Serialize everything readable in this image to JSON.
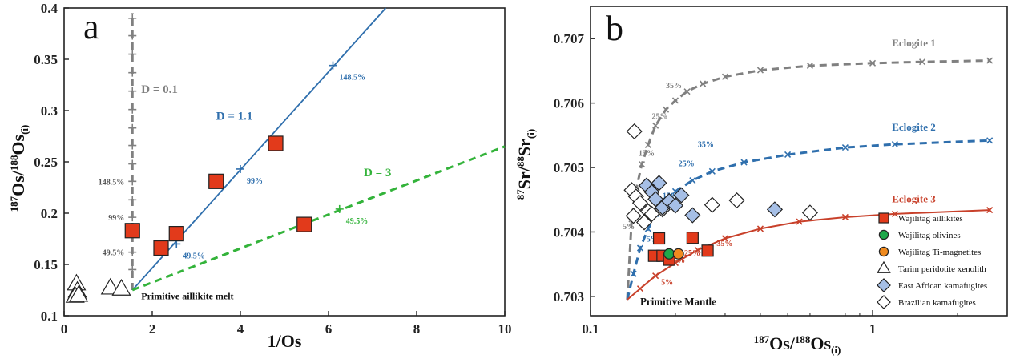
{
  "chart_data": [
    {
      "panel": "a",
      "type": "scatter",
      "xlabel": "1/Os",
      "ylabel": "187Os/188Os(i)",
      "xlim": [
        0,
        10
      ],
      "ylim": [
        0.1,
        0.4
      ],
      "xticks": [
        "0",
        "2",
        "4",
        "6",
        "8",
        "10"
      ],
      "yticks": [
        "0.1",
        "0.15",
        "0.2",
        "0.25",
        "0.3",
        "0.35",
        "0.4"
      ],
      "mixing_lines": [
        {
          "name": "D = 0.1",
          "color": "#808080",
          "style": "dashed",
          "points": [
            [
              1.55,
              0.125
            ],
            [
              1.55,
              0.395
            ]
          ],
          "ticks_y": [
            0.145,
            0.162,
            0.18,
            0.196,
            0.213,
            0.231,
            0.248,
            0.266,
            0.283,
            0.301,
            0.319,
            0.337,
            0.355,
            0.373,
            0.39
          ],
          "labels": [
            {
              "text": "49.5%",
              "x": 1.55,
              "y": 0.162
            },
            {
              "text": "99%",
              "x": 1.55,
              "y": 0.196
            },
            {
              "text": "148.5%",
              "x": 1.55,
              "y": 0.231
            }
          ]
        },
        {
          "name": "D = 1.1",
          "color": "#2f6fad",
          "style": "solid",
          "points": [
            [
              1.55,
              0.125
            ],
            [
              7.3,
              0.4
            ]
          ],
          "ticks": [
            [
              2.55,
              0.17
            ],
            [
              4.0,
              0.243
            ],
            [
              6.1,
              0.344
            ]
          ],
          "labels": [
            {
              "text": "49.5%",
              "x": 2.55,
              "y": 0.17
            },
            {
              "text": "99%",
              "x": 4.0,
              "y": 0.243
            },
            {
              "text": "148.5%",
              "x": 6.1,
              "y": 0.344
            }
          ]
        },
        {
          "name": "D = 3",
          "color": "#33b33a",
          "style": "dashed",
          "points": [
            [
              1.55,
              0.125
            ],
            [
              10,
              0.265
            ]
          ],
          "ticks": [
            [
              6.25,
              0.204
            ]
          ],
          "labels": [
            {
              "text": "49.5%",
              "x": 6.25,
              "y": 0.204
            }
          ]
        }
      ],
      "series": [
        {
          "name": "Wajilitag aillikites",
          "marker": "square",
          "color": "#e23a1b",
          "points": [
            [
              1.55,
              0.183
            ],
            [
              2.2,
              0.166
            ],
            [
              2.55,
              0.18
            ],
            [
              3.45,
              0.231
            ],
            [
              4.8,
              0.268
            ],
            [
              5.45,
              0.189
            ]
          ]
        },
        {
          "name": "Tarim peridotite xenolith",
          "marker": "triangle",
          "color": "#ffffff",
          "points": [
            [
              0.28,
              0.131
            ],
            [
              0.3,
              0.124
            ],
            [
              0.25,
              0.119
            ],
            [
              0.33,
              0.12
            ],
            [
              1.05,
              0.127
            ],
            [
              1.3,
              0.126
            ]
          ]
        }
      ],
      "annotations": [
        {
          "text": "D = 0.1",
          "x": 1.75,
          "y": 0.317
        },
        {
          "text": "D = 1.1",
          "x": 3.45,
          "y": 0.291
        },
        {
          "text": "D = 3",
          "x": 6.8,
          "y": 0.236
        },
        {
          "text": "Primitive aillikite melt",
          "x": 1.75,
          "y": 0.116
        }
      ]
    },
    {
      "panel": "b",
      "type": "line",
      "xscale": "log",
      "xlabel": "187Os/188Os(i)",
      "ylabel": "87Sr/88Sr(i)",
      "xlim": [
        0.1,
        3
      ],
      "ylim": [
        0.7027,
        0.7075
      ],
      "xticks": [
        "0.1",
        "1"
      ],
      "yticks": [
        "0.703",
        "0.704",
        "0.705",
        "0.706",
        "0.707"
      ],
      "mixing_curves": [
        {
          "name": "Eclogite 1",
          "color": "#808080",
          "style": "dashed",
          "points": [
            [
              0.135,
              0.70295
            ],
            [
              0.14,
              0.7042
            ],
            [
              0.145,
              0.70465
            ],
            [
              0.152,
              0.70505
            ],
            [
              0.16,
              0.70535
            ],
            [
              0.17,
              0.70565
            ],
            [
              0.185,
              0.7059
            ],
            [
              0.2,
              0.70604
            ],
            [
              0.22,
              0.70618
            ],
            [
              0.25,
              0.7063
            ],
            [
              0.3,
              0.70641
            ],
            [
              0.4,
              0.70651
            ],
            [
              0.6,
              0.70658
            ],
            [
              1.0,
              0.70662
            ],
            [
              1.5,
              0.70664
            ],
            [
              2.6,
              0.70666
            ]
          ],
          "labels": [
            {
              "text": "5%",
              "x": 0.13,
              "y": 0.70404
            },
            {
              "text": "15%",
              "x": 0.148,
              "y": 0.70518
            },
            {
              "text": "25%",
              "x": 0.165,
              "y": 0.70575
            },
            {
              "text": "35%",
              "x": 0.185,
              "y": 0.70623
            }
          ]
        },
        {
          "name": "Eclogite 2",
          "color": "#2f6fad",
          "style": "dashed",
          "points": [
            [
              0.135,
              0.70295
            ],
            [
              0.142,
              0.70335
            ],
            [
              0.15,
              0.70375
            ],
            [
              0.16,
              0.70405
            ],
            [
              0.17,
              0.70428
            ],
            [
              0.185,
              0.70448
            ],
            [
              0.2,
              0.70463
            ],
            [
              0.23,
              0.7048
            ],
            [
              0.27,
              0.70494
            ],
            [
              0.35,
              0.70508
            ],
            [
              0.5,
              0.7052
            ],
            [
              0.8,
              0.70531
            ],
            [
              1.2,
              0.70536
            ],
            [
              2.6,
              0.70542
            ]
          ],
          "labels": [
            {
              "text": "5%",
              "x": 0.158,
              "y": 0.70385
            },
            {
              "text": "15%",
              "x": 0.18,
              "y": 0.70452
            },
            {
              "text": "25%",
              "x": 0.205,
              "y": 0.70502
            },
            {
              "text": "35%",
              "x": 0.24,
              "y": 0.70532
            }
          ]
        },
        {
          "name": "Eclogite 3",
          "color": "#c8402a",
          "style": "solid",
          "points": [
            [
              0.135,
              0.70295
            ],
            [
              0.15,
              0.70312
            ],
            [
              0.17,
              0.70332
            ],
            [
              0.2,
              0.70352
            ],
            [
              0.24,
              0.70372
            ],
            [
              0.3,
              0.7039
            ],
            [
              0.4,
              0.70405
            ],
            [
              0.55,
              0.70416
            ],
            [
              0.8,
              0.70423
            ],
            [
              1.2,
              0.70428
            ],
            [
              2.6,
              0.70434
            ]
          ],
          "labels": [
            {
              "text": "5%",
              "x": 0.178,
              "y": 0.70318
            },
            {
              "text": "15%",
              "x": 0.19,
              "y": 0.70352
            },
            {
              "text": "25%",
              "x": 0.215,
              "y": 0.70363
            },
            {
              "text": "35%",
              "x": 0.28,
              "y": 0.70378
            }
          ]
        }
      ],
      "curve_labels": [
        {
          "text": "Eclogite 1",
          "x": 1.4,
          "y": 0.70688,
          "color": "#808080"
        },
        {
          "text": "Eclogite 2",
          "x": 1.4,
          "y": 0.70557,
          "color": "#2f6fad"
        },
        {
          "text": "Eclogite 3",
          "x": 1.4,
          "y": 0.70446,
          "color": "#c8402a"
        }
      ],
      "series": [
        {
          "name": "Wajilitag aillikites",
          "marker": "square",
          "color": "#e23a1b",
          "points": [
            [
              0.175,
              0.7039
            ],
            [
              0.168,
              0.70363
            ],
            [
              0.18,
              0.70363
            ],
            [
              0.19,
              0.70357
            ],
            [
              0.23,
              0.70391
            ],
            [
              0.26,
              0.70371
            ]
          ]
        },
        {
          "name": "Wajilitag olivines",
          "marker": "circle",
          "color": "#1ea84a",
          "points": [
            [
              0.19,
              0.70366
            ]
          ]
        },
        {
          "name": "Wajilitag Ti-magnetites",
          "marker": "circle",
          "color": "#f08a1e",
          "points": [
            [
              0.205,
              0.70366
            ]
          ]
        },
        {
          "name": "Tarim peridotite xenolith",
          "marker": "triangle",
          "color": "#ffffff",
          "points": []
        },
        {
          "name": "East African kamafugites",
          "marker": "diamond",
          "color": "#a6bfe6",
          "points": [
            [
              0.158,
              0.70472
            ],
            [
              0.165,
              0.70462
            ],
            [
              0.17,
              0.70451
            ],
            [
              0.175,
              0.70476
            ],
            [
              0.18,
              0.70438
            ],
            [
              0.19,
              0.70448
            ],
            [
              0.2,
              0.70441
            ],
            [
              0.21,
              0.70457
            ],
            [
              0.23,
              0.70426
            ],
            [
              0.45,
              0.70435
            ]
          ]
        },
        {
          "name": "Brazilian kamafugites",
          "marker": "diamond",
          "color": "#ffffff",
          "points": [
            [
              0.143,
              0.70556
            ],
            [
              0.14,
              0.70465
            ],
            [
              0.145,
              0.70455
            ],
            [
              0.15,
              0.70445
            ],
            [
              0.142,
              0.70425
            ],
            [
              0.155,
              0.70415
            ],
            [
              0.16,
              0.70432
            ],
            [
              0.165,
              0.70428
            ],
            [
              0.18,
              0.70435
            ],
            [
              0.27,
              0.70442
            ],
            [
              0.33,
              0.70449
            ],
            [
              0.6,
              0.7043
            ]
          ]
        }
      ],
      "annotations": [
        {
          "text": "Primitive Mantle",
          "x": 0.15,
          "y": 0.70287
        }
      ],
      "legend": [
        "Wajilitag aillikites",
        "Wajilitag olivines",
        "Wajilitag Ti-magnetites",
        "Tarim peridotite xenolith",
        "East African kamafugites",
        "Brazilian kamafugites"
      ],
      "legend_position": "bottom-right"
    }
  ],
  "panel_labels": {
    "a": "a",
    "b": "b"
  },
  "axis_text": {
    "a_xlabel": "1/Os",
    "a_ylabel_sup1": "187",
    "a_ylabel_base1": "Os/",
    "a_ylabel_sup2": "188",
    "a_ylabel_base2": "Os",
    "a_ylabel_sub": "(i)",
    "b_xlabel_sup1": "187",
    "b_xlabel_base1": "Os/",
    "b_xlabel_sup2": "188",
    "b_xlabel_base2": "Os",
    "b_xlabel_sub": "(i)",
    "b_ylabel_sup1": "87",
    "b_ylabel_base1": "Sr/",
    "b_ylabel_sup2": "88",
    "b_ylabel_base2": "Sr",
    "b_ylabel_sub": "(i)"
  }
}
